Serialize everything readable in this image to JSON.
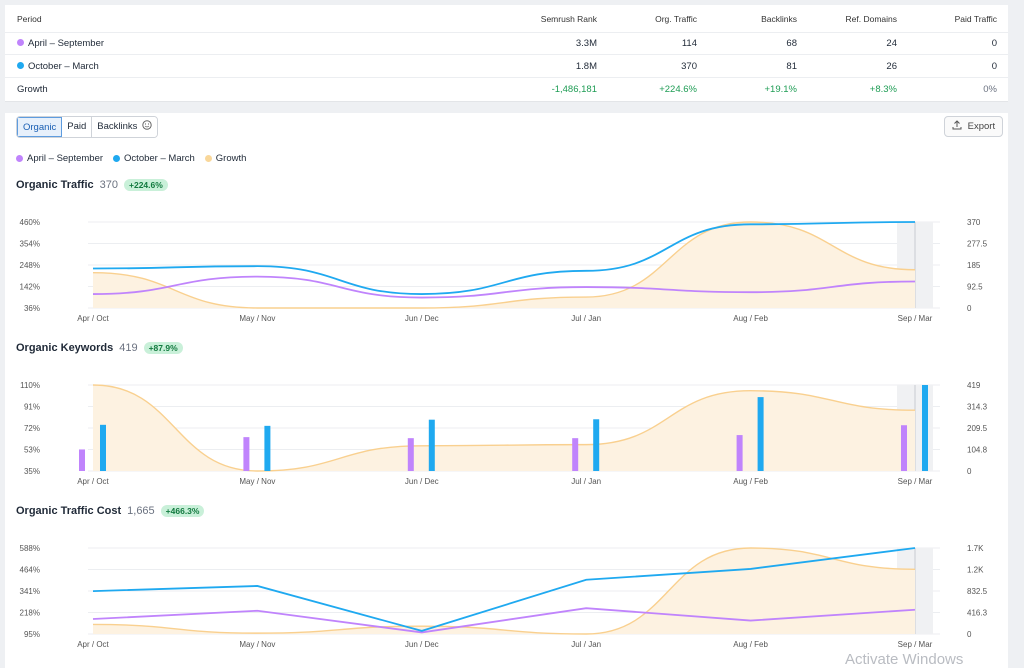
{
  "table": {
    "columns": [
      "Period",
      "Semrush Rank",
      "Org. Traffic",
      "Backlinks",
      "Ref. Domains",
      "Paid Traffic"
    ],
    "rows": [
      {
        "period": "April – September",
        "rank": "3.3M",
        "traffic": "114",
        "backlinks": "68",
        "ref_domains": "24",
        "paid": "0",
        "color": "#c084fc"
      },
      {
        "period": "October – March",
        "rank": "1.8M",
        "traffic": "370",
        "backlinks": "81",
        "ref_domains": "26",
        "paid": "0",
        "color": "#1fa9f0"
      }
    ],
    "growth": {
      "label": "Growth",
      "rank": "-1,486,181",
      "traffic": "+224.6%",
      "backlinks": "+19.1%",
      "ref_domains": "+8.3%",
      "paid": "0%"
    }
  },
  "tabs": [
    "Organic",
    "Paid",
    "Backlinks"
  ],
  "export_label": "Export",
  "legend": [
    {
      "label": "April – September",
      "color": "#c084fc"
    },
    {
      "label": "October – March",
      "color": "#1fa9f0"
    },
    {
      "label": "Growth",
      "color": "#f9d79a"
    }
  ],
  "watermark": "Activate Windows",
  "chart_data": [
    {
      "type": "line",
      "title": "Organic Traffic",
      "value": "370",
      "badge": "+224.6%",
      "categories": [
        "Apr / Oct",
        "May / Nov",
        "Jun / Dec",
        "Jul / Jan",
        "Aug / Feb",
        "Sep / Mar"
      ],
      "left_ticks": [
        "460%",
        "354%",
        "248%",
        "142%",
        "36%"
      ],
      "right_ticks": [
        "370",
        "277.5",
        "185",
        "92.5",
        "0"
      ],
      "left_range": [
        36,
        460
      ],
      "right_range": [
        0,
        370
      ],
      "series": [
        {
          "name": "April – September",
          "axis": "right",
          "values": [
            60,
            135,
            45,
            90,
            68,
            114
          ]
        },
        {
          "name": "October – March",
          "axis": "right",
          "values": [
            170,
            180,
            60,
            160,
            360,
            370
          ]
        },
        {
          "name": "Growth",
          "axis": "left",
          "values": [
            210,
            36,
            36,
            90,
            460,
            224.6
          ]
        }
      ]
    },
    {
      "type": "bar",
      "title": "Organic Keywords",
      "value": "419",
      "badge": "+87.9%",
      "categories": [
        "Apr / Oct",
        "May / Nov",
        "Jun / Dec",
        "Jul / Jan",
        "Aug / Feb",
        "Sep / Mar"
      ],
      "left_ticks": [
        "110%",
        "91%",
        "72%",
        "53%",
        "35%"
      ],
      "right_ticks": [
        "419",
        "314.3",
        "209.5",
        "104.8",
        "0"
      ],
      "left_range": [
        35,
        110
      ],
      "right_range": [
        0,
        419
      ],
      "series": [
        {
          "name": "April – September",
          "axis": "right",
          "values": [
            105,
            165,
            160,
            160,
            175,
            223
          ]
        },
        {
          "name": "October – March",
          "axis": "right",
          "values": [
            225,
            220,
            250,
            252,
            360,
            419
          ]
        },
        {
          "name": "Growth",
          "axis": "left",
          "values": [
            110,
            35,
            57,
            58,
            105,
            88
          ]
        }
      ]
    },
    {
      "type": "line",
      "title": "Organic Traffic Cost",
      "value": "1,665",
      "badge": "+466.3%",
      "categories": [
        "Apr / Oct",
        "May / Nov",
        "Jun / Dec",
        "Jul / Jan",
        "Aug / Feb",
        "Sep / Mar"
      ],
      "left_ticks": [
        "588%",
        "464%",
        "341%",
        "218%",
        "95%"
      ],
      "right_ticks": [
        "1.7K",
        "1.2K",
        "832.5",
        "416.3",
        "0"
      ],
      "left_range": [
        95,
        588
      ],
      "right_range": [
        0,
        1665
      ],
      "series": [
        {
          "name": "April – September",
          "axis": "right",
          "values": [
            290,
            450,
            30,
            500,
            260,
            470
          ]
        },
        {
          "name": "October – March",
          "axis": "right",
          "values": [
            830,
            930,
            60,
            1050,
            1260,
            1665
          ]
        },
        {
          "name": "Growth",
          "axis": "left",
          "values": [
            150,
            100,
            140,
            95,
            588,
            466
          ]
        }
      ]
    }
  ]
}
